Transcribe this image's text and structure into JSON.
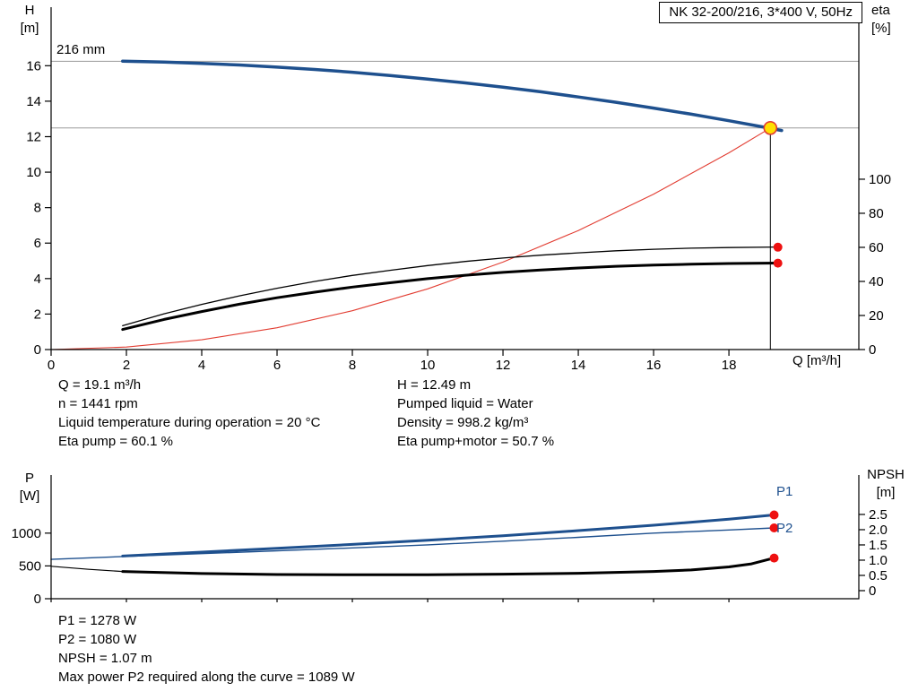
{
  "title_box": {
    "text": "NK 32-200/216, 3*400 V, 50Hz"
  },
  "labels": {
    "h_axis_line1": "H",
    "h_axis_line2": "[m]",
    "eta_axis_line1": "eta",
    "eta_axis_line2": "[%]",
    "q_axis": "Q [m³/h]",
    "impeller": "216 mm",
    "p_axis_line1": "P",
    "p_axis_line2": "[W]",
    "npsh_axis_line1": "NPSH",
    "npsh_axis_line2": "[m]",
    "p1_curve": "P1",
    "p2_curve": "P2"
  },
  "colors": {
    "curve_blue": "#1e508e",
    "curve_black": "#000000",
    "system_red": "#e23d32",
    "dot_red": "#ee1111",
    "duty_yellow": "#ffe000",
    "ref_gray": "#9a9a9a"
  },
  "info": {
    "col1": [
      "Q = 19.1 m³/h",
      "n = 1441 rpm",
      "Liquid temperature during operation = 20 °C",
      "Eta pump = 60.1 %"
    ],
    "col2": [
      "H = 12.49 m",
      "Pumped liquid = Water",
      "Density = 998.2 kg/m³",
      "Eta pump+motor = 50.7 %"
    ]
  },
  "results": [
    "P1 = 1278 W",
    "P2 = 1080 W",
    "NPSH = 1.07 m",
    "Max power P2 required along the curve = 1089 W"
  ],
  "chart_data": [
    {
      "id": "qh",
      "type": "line",
      "title": "NK 32-200/216, 3*400 V, 50Hz",
      "x_axis": {
        "label": "Q [m³/h]",
        "range": [
          0,
          21.45
        ],
        "ticks": [
          "0",
          "2",
          "4",
          "6",
          "8",
          "10",
          "12",
          "14",
          "16",
          "18"
        ],
        "show_tick_labels": true
      },
      "y_left": {
        "label": "H [m]",
        "range": [
          0,
          19.3
        ],
        "ticks": [
          "0",
          "2",
          "4",
          "6",
          "8",
          "10",
          "12",
          "14",
          "16"
        ]
      },
      "y_right": {
        "label": "eta [%]",
        "range": [
          0,
          201
        ],
        "ticks": [
          "0",
          "20",
          "40",
          "60",
          "80",
          "100"
        ]
      },
      "ref_lines": [
        {
          "axis": "left",
          "value": 16.25,
          "color": "#9a9a9a"
        },
        {
          "axis": "left",
          "value": 12.49,
          "color": "#9a9a9a"
        }
      ],
      "duty_line": {
        "x": 19.1,
        "y_top": 12.49
      },
      "series": [
        {
          "name": "system-curve",
          "axis": "left",
          "color": "#e23d32",
          "width": 1.1,
          "x": [
            0,
            2,
            4,
            6,
            8,
            10,
            12,
            14,
            16,
            18,
            19.1
          ],
          "y": [
            0,
            0.14,
            0.55,
            1.23,
            2.19,
            3.42,
            4.93,
            6.71,
            8.76,
            11.09,
            12.49
          ]
        },
        {
          "name": "pump-curve-216mm",
          "axis": "left",
          "color": "#1e508e",
          "width": 3.5,
          "x": [
            1.9,
            3,
            4,
            5,
            6,
            7,
            8,
            9,
            10,
            11,
            12,
            13,
            14,
            15,
            16,
            17,
            18,
            19,
            19.4
          ],
          "y": [
            16.26,
            16.21,
            16.13,
            16.04,
            15.92,
            15.79,
            15.63,
            15.45,
            15.25,
            15.03,
            14.79,
            14.53,
            14.24,
            13.94,
            13.61,
            13.27,
            12.9,
            12.51,
            12.35
          ]
        },
        {
          "name": "eta-pump",
          "axis": "right",
          "color": "#000000",
          "width": 1.3,
          "x": [
            1.9,
            3,
            4,
            5,
            6,
            7,
            8,
            9,
            10,
            11,
            12,
            13,
            14,
            15,
            16,
            17,
            18,
            19.3
          ],
          "y": [
            14,
            21,
            26.5,
            31.5,
            36,
            40,
            43.5,
            46.5,
            49.3,
            51.7,
            53.7,
            55.4,
            56.8,
            58,
            58.9,
            59.5,
            59.9,
            60.2
          ]
        },
        {
          "name": "eta-pump-motor",
          "axis": "right",
          "color": "#000000",
          "width": 3,
          "x": [
            1.9,
            3,
            4,
            5,
            6,
            7,
            8,
            9,
            10,
            11,
            12,
            13,
            14,
            15,
            16,
            17,
            18,
            19.3
          ],
          "y": [
            11.8,
            17.7,
            22.3,
            26.6,
            30.4,
            33.7,
            36.7,
            39.2,
            41.6,
            43.6,
            45.3,
            46.7,
            47.9,
            48.9,
            49.6,
            50.1,
            50.5,
            50.8
          ]
        }
      ],
      "markers": [
        {
          "name": "duty-point",
          "axis": "left",
          "x": 19.1,
          "y": 12.49,
          "r": 7,
          "fill": "#ffe000",
          "stroke": "#e23d32"
        },
        {
          "name": "eta-pump-point",
          "axis": "right",
          "x": 19.3,
          "y": 60.1,
          "r": 5,
          "fill": "#ee1111"
        },
        {
          "name": "eta-pump-motor-point",
          "axis": "right",
          "x": 19.3,
          "y": 50.7,
          "r": 5,
          "fill": "#ee1111"
        }
      ]
    },
    {
      "id": "power",
      "type": "line",
      "title": "",
      "x_axis": {
        "label": "",
        "range": [
          0,
          21.45
        ],
        "ticks": [
          "0",
          "2",
          "4",
          "6",
          "8",
          "10",
          "12",
          "14",
          "16",
          "18"
        ],
        "show_tick_labels": false
      },
      "y_left": {
        "label": "P [W]",
        "range": [
          0,
          1886
        ],
        "ticks": [
          "0",
          "500",
          "1000"
        ]
      },
      "y_right": {
        "label": "NPSH [m]",
        "range": [
          -0.265,
          3.793
        ],
        "ticks": [
          "0",
          "0.5",
          "1.0",
          "1.5",
          "2.0",
          "2.5"
        ]
      },
      "ref_lines": [],
      "series": [
        {
          "name": "p2-power",
          "axis": "left",
          "color": "#1e508e",
          "width": 1.4,
          "x": [
            0,
            2,
            4,
            6,
            8,
            10,
            12,
            14,
            16,
            18,
            19.2
          ],
          "y": [
            600,
            645,
            688,
            730,
            775,
            822,
            877,
            936,
            1000,
            1048,
            1080
          ]
        },
        {
          "name": "p1-power",
          "axis": "left",
          "color": "#1e508e",
          "width": 3,
          "x": [
            1.9,
            4,
            6,
            8,
            10,
            12,
            14,
            16,
            18,
            19.2
          ],
          "y": [
            650,
            710,
            768,
            828,
            892,
            960,
            1038,
            1120,
            1212,
            1278
          ]
        },
        {
          "name": "npsh-lead",
          "axis": "right",
          "color": "#000000",
          "width": 1.2,
          "x": [
            0,
            1,
            1.9
          ],
          "y": [
            0.8,
            0.7,
            0.63
          ]
        },
        {
          "name": "npsh",
          "axis": "right",
          "color": "#000000",
          "width": 3,
          "x": [
            1.9,
            4,
            6,
            8,
            10,
            12,
            14,
            16,
            17,
            18,
            18.6,
            19.2
          ],
          "y": [
            0.63,
            0.56,
            0.53,
            0.52,
            0.52,
            0.54,
            0.57,
            0.63,
            0.68,
            0.78,
            0.88,
            1.07
          ]
        }
      ],
      "markers": [
        {
          "name": "p1-point",
          "axis": "left",
          "x": 19.2,
          "y": 1278,
          "r": 5,
          "fill": "#ee1111"
        },
        {
          "name": "p2-point",
          "axis": "left",
          "x": 19.2,
          "y": 1080,
          "r": 5,
          "fill": "#ee1111"
        },
        {
          "name": "npsh-point",
          "axis": "right",
          "x": 19.2,
          "y": 1.07,
          "r": 5,
          "fill": "#ee1111"
        }
      ]
    }
  ]
}
